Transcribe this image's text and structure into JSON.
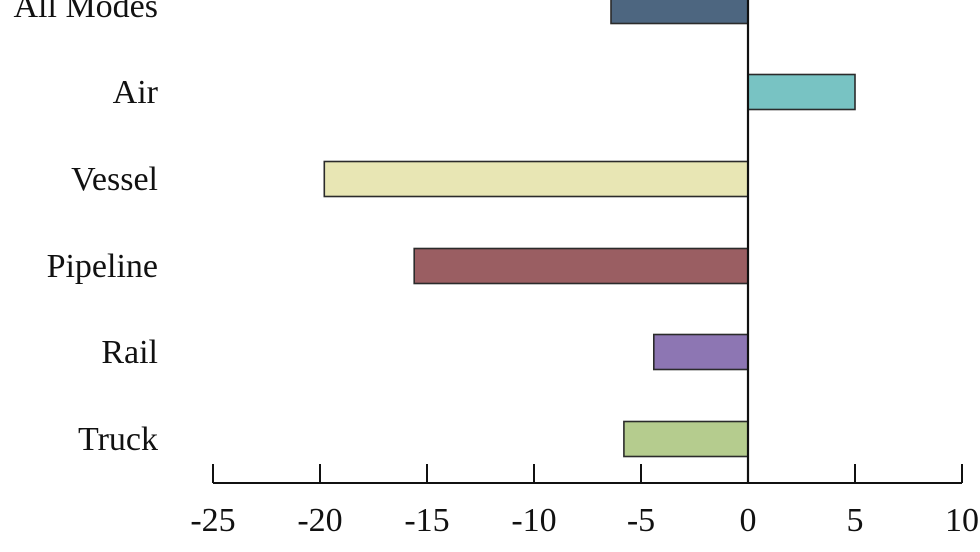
{
  "chart_data": {
    "type": "bar",
    "orientation": "horizontal",
    "title": "",
    "xlabel": "",
    "ylabel": "",
    "categories": [
      "All Modes",
      "Air",
      "Vessel",
      "Pipeline",
      "Rail",
      "Truck"
    ],
    "values": [
      -6.4,
      5.0,
      -19.8,
      -15.6,
      -4.4,
      -5.8
    ],
    "colors": [
      "#4d6680",
      "#78c3c3",
      "#e8e6b4",
      "#9a5e62",
      "#8d76b3",
      "#b5cc8e"
    ],
    "bar_stroke": "#2b2b2b",
    "xlim": [
      -25,
      10
    ],
    "x_ticks": [
      -25,
      -20,
      -15,
      -10,
      -5,
      0,
      5,
      10
    ],
    "x_tick_labels": [
      "-25",
      "-20",
      "-15",
      "-10",
      "-5",
      "0",
      "5",
      "10"
    ],
    "grid": false,
    "legend": "none"
  }
}
